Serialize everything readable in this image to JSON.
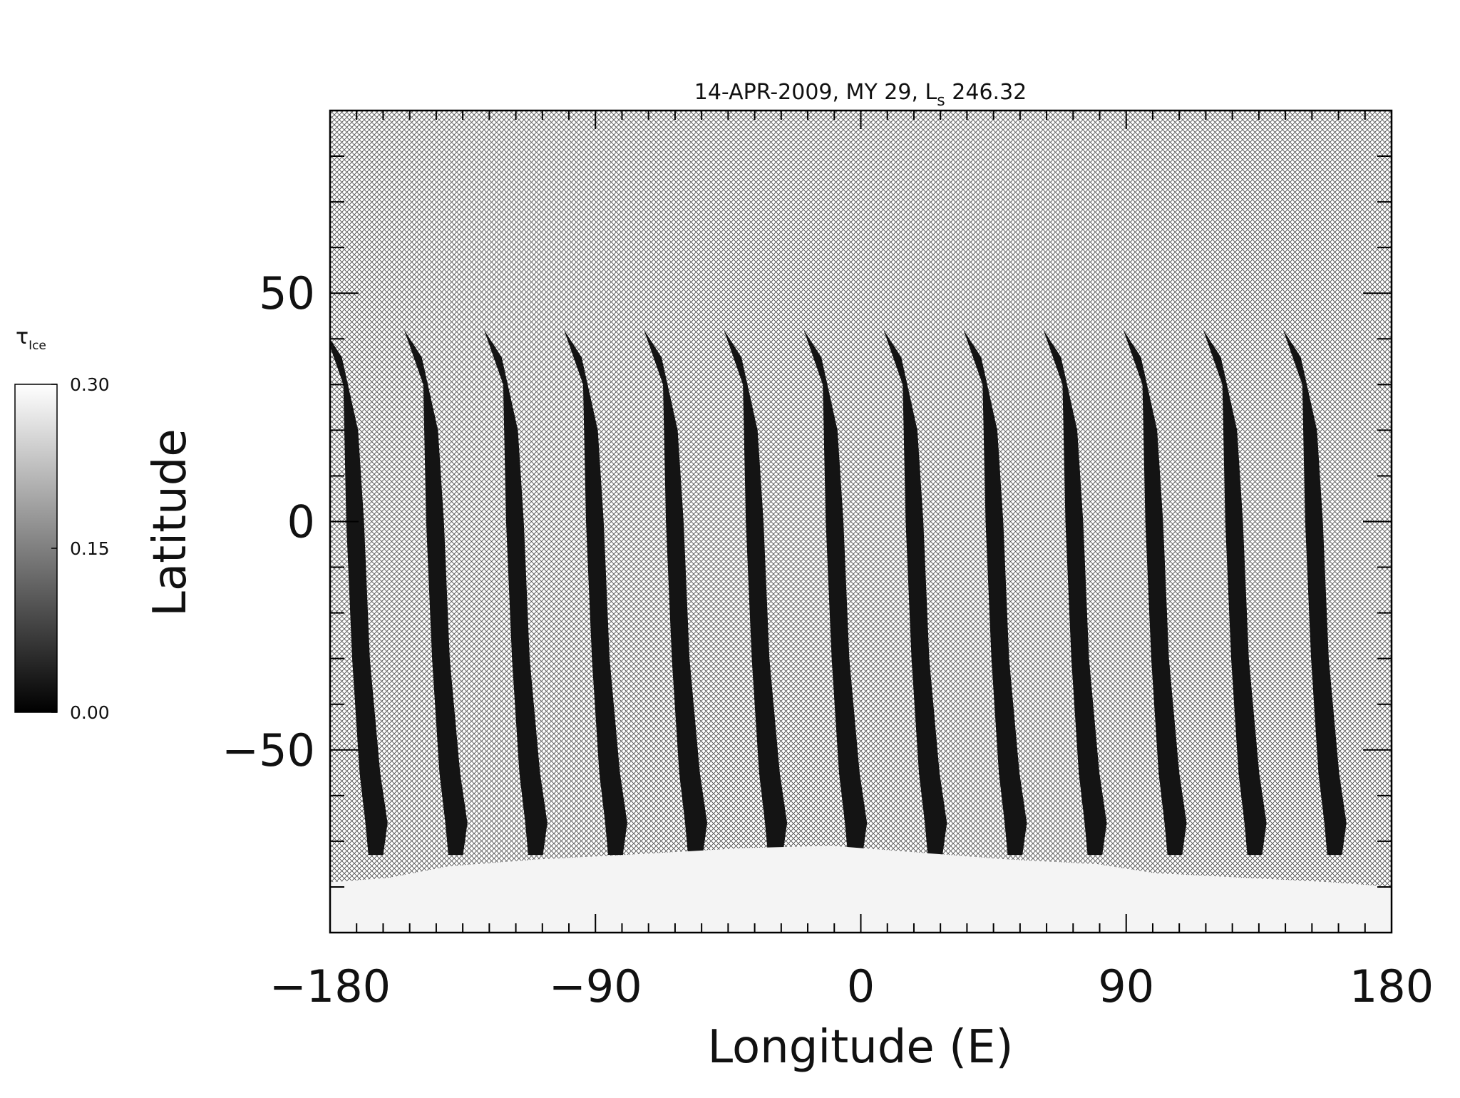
{
  "chart_data": {
    "type": "heatmap",
    "title": {
      "main": "14-APR-2009, MY 29,  L",
      "sub": "s",
      "value": " 246.32"
    },
    "xlabel": "Longitude (E)",
    "ylabel": "Latitude",
    "xlim": [
      -180,
      180
    ],
    "ylim": [
      -90,
      90
    ],
    "x_ticks": [
      -180,
      -90,
      0,
      90,
      180
    ],
    "x_tick_labels": [
      "−180",
      "−90",
      "0",
      "90",
      "180"
    ],
    "x_minor_step": 9,
    "y_ticks": [
      50,
      0,
      -50
    ],
    "y_tick_labels": [
      "50",
      "0",
      "−50"
    ],
    "y_minor_step": 10,
    "colorbar": {
      "label": "τ",
      "label_sub": "Ice",
      "min": 0.0,
      "max": 0.3,
      "ticks": [
        0.3,
        0.15,
        0.0
      ],
      "tick_labels": [
        "0.30",
        "0.15",
        "0.00"
      ],
      "colormap": "grayscale"
    },
    "no_data_pattern": "crosshatch",
    "swaths": {
      "count": 13,
      "first_center_lon": -176,
      "spacing_deg": 27.1,
      "top_lat": 42,
      "bottom_lat": -73,
      "value": 0.02
    },
    "south_polar_ice": {
      "lat_edge_range": [
        -72,
        -80
      ],
      "value": 0.3
    }
  },
  "colors": {
    "swath": "#141414",
    "ice": "#f4f4f4",
    "hatch": "#555555",
    "axes": "#000000"
  }
}
